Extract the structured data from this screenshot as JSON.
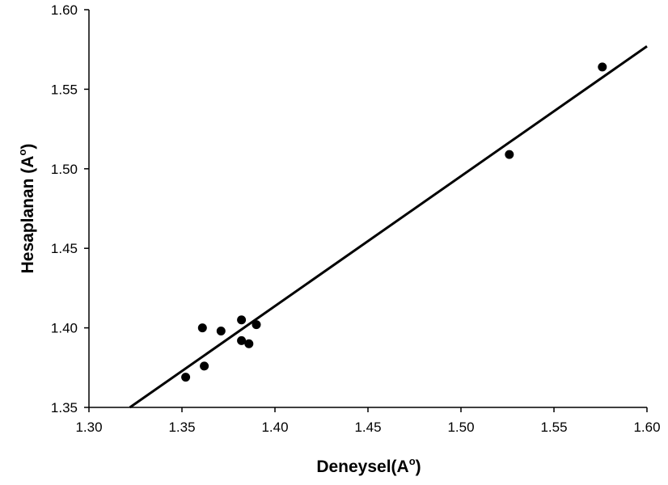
{
  "chart_data": {
    "type": "scatter",
    "xlabel": "Deneysel(A",
    "xlabel_sup": "o",
    "xlabel_close": ")",
    "ylabel": "Hesaplanan (A",
    "ylabel_sup": "o",
    "ylabel_close": ")",
    "xlim": [
      1.3,
      1.6
    ],
    "ylim": [
      1.35,
      1.6
    ],
    "xticks": [
      "1.30",
      "1.35",
      "1.40",
      "1.45",
      "1.50",
      "1.55",
      "1.60"
    ],
    "yticks": [
      "1.35",
      "1.40",
      "1.45",
      "1.50",
      "1.55",
      "1.60"
    ],
    "grid": false,
    "legend": "none",
    "points": [
      {
        "x": 1.352,
        "y": 1.369
      },
      {
        "x": 1.361,
        "y": 1.4
      },
      {
        "x": 1.362,
        "y": 1.376
      },
      {
        "x": 1.371,
        "y": 1.398
      },
      {
        "x": 1.382,
        "y": 1.405
      },
      {
        "x": 1.382,
        "y": 1.392
      },
      {
        "x": 1.386,
        "y": 1.39
      },
      {
        "x": 1.39,
        "y": 1.402
      },
      {
        "x": 1.526,
        "y": 1.509
      },
      {
        "x": 1.576,
        "y": 1.564
      }
    ],
    "trendline": {
      "x": [
        1.322,
        1.6
      ],
      "y": [
        1.35,
        1.577
      ]
    },
    "colors": {
      "marker": "#000000",
      "line": "#000000",
      "axis": "#000000"
    }
  }
}
